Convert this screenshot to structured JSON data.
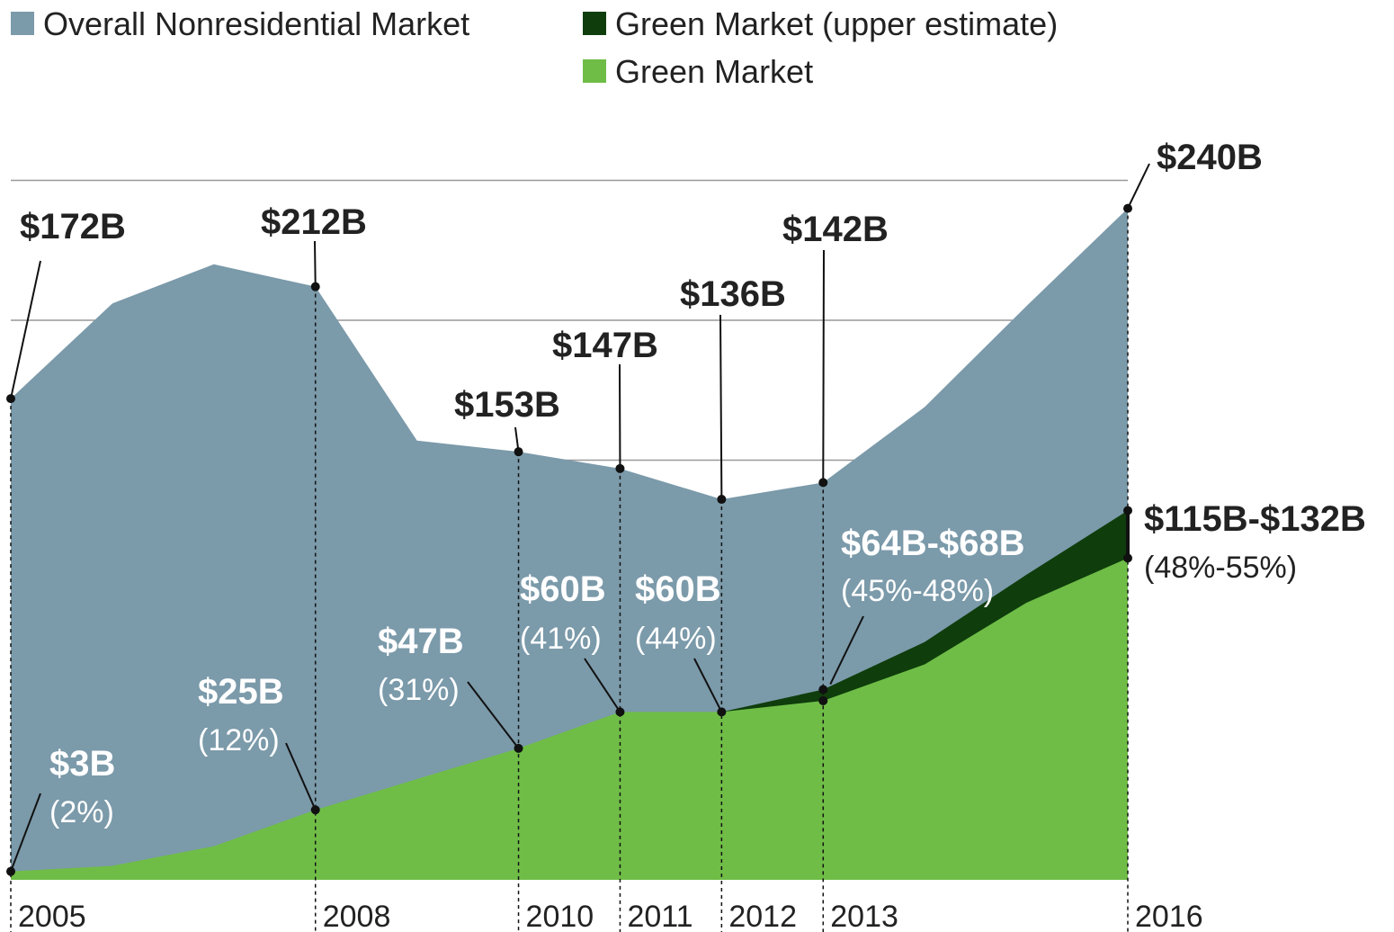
{
  "chart_data": {
    "type": "area",
    "x": [
      2005,
      2006,
      2007,
      2008,
      2009,
      2010,
      2011,
      2012,
      2013,
      2014,
      2015,
      2016
    ],
    "series": [
      {
        "name": "Overall Nonresidential Market",
        "color": "#7b9aaa",
        "values": [
          172,
          206,
          220,
          212,
          157,
          153,
          147,
          136,
          142,
          169,
          205,
          240
        ],
        "value_labels": [
          "$172B",
          null,
          null,
          "$212B",
          null,
          "$153B",
          "$147B",
          "$136B",
          "$142B",
          null,
          null,
          "$240B"
        ]
      },
      {
        "name": "Green Market (upper estimate)",
        "color": "#0f3d0c",
        "values": [
          null,
          null,
          null,
          null,
          null,
          null,
          null,
          60,
          68,
          85,
          109,
          132
        ]
      },
      {
        "name": "Green Market",
        "color": "#6fbd47",
        "values": [
          3,
          5,
          12,
          25,
          36,
          47,
          60,
          60,
          64,
          77,
          99,
          115
        ],
        "value_labels": [
          "$3B",
          null,
          null,
          "$25B",
          null,
          "$47B",
          "$60B",
          "$60B",
          null,
          null,
          null,
          null
        ]
      }
    ],
    "annotations": [
      {
        "text": "(2%)",
        "x": 2005
      },
      {
        "text": "(12%)",
        "x": 2008
      },
      {
        "text": "(31%)",
        "x": 2010
      },
      {
        "text": "(41%)",
        "x": 2011
      },
      {
        "text": "(44%)",
        "x": 2012
      },
      {
        "text": "$64B-$68B",
        "x": 2013
      },
      {
        "text": "(45%-48%)",
        "x": 2013
      },
      {
        "text": "$115B-$132B",
        "x": 2016
      },
      {
        "text": "(48%-55%)",
        "x": 2016
      }
    ],
    "xlim": [
      2005,
      2016
    ],
    "xticks": [
      2005,
      2008,
      2010,
      2011,
      2012,
      2013,
      2016
    ],
    "ylim": [
      0,
      250
    ],
    "yticks": [
      150,
      200,
      250
    ],
    "grid": true,
    "legend": "top-left"
  }
}
